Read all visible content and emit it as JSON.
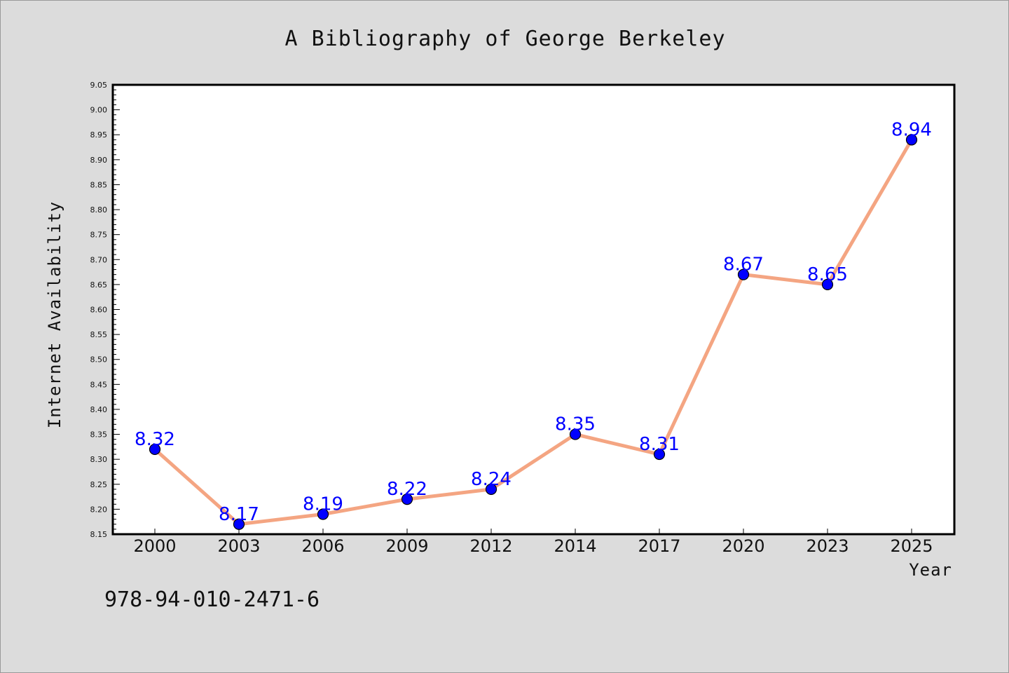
{
  "chart_data": {
    "type": "line",
    "title": "A Bibliography of George Berkeley",
    "xlabel": "Year",
    "ylabel": "Internet Availability",
    "categories": [
      "2000",
      "2003",
      "2006",
      "2009",
      "2012",
      "2014",
      "2017",
      "2020",
      "2023",
      "2025"
    ],
    "series": [
      {
        "values": [
          8.32,
          8.17,
          8.19,
          8.22,
          8.24,
          8.35,
          8.31,
          8.67,
          8.65,
          8.94
        ],
        "data_labels": [
          "8.32",
          "8.17",
          "8.19",
          "8.22",
          "8.24",
          "8.35",
          "8.31",
          "8.67",
          "8.65",
          "8.94"
        ]
      }
    ],
    "ylim": [
      8.15,
      9.05
    ],
    "yticks": [
      "8.15",
      "8.20",
      "8.25",
      "8.30",
      "8.35",
      "8.40",
      "8.45",
      "8.50",
      "8.55",
      "8.60",
      "8.65",
      "8.70",
      "8.75",
      "8.80",
      "8.85",
      "8.90",
      "8.95",
      "9.00",
      "9.05"
    ],
    "grid": false,
    "colors": {
      "line": "#f4a582",
      "marker": "#0000ff",
      "label": "#0000ff"
    }
  },
  "annotation": "978-94-010-2471-6"
}
